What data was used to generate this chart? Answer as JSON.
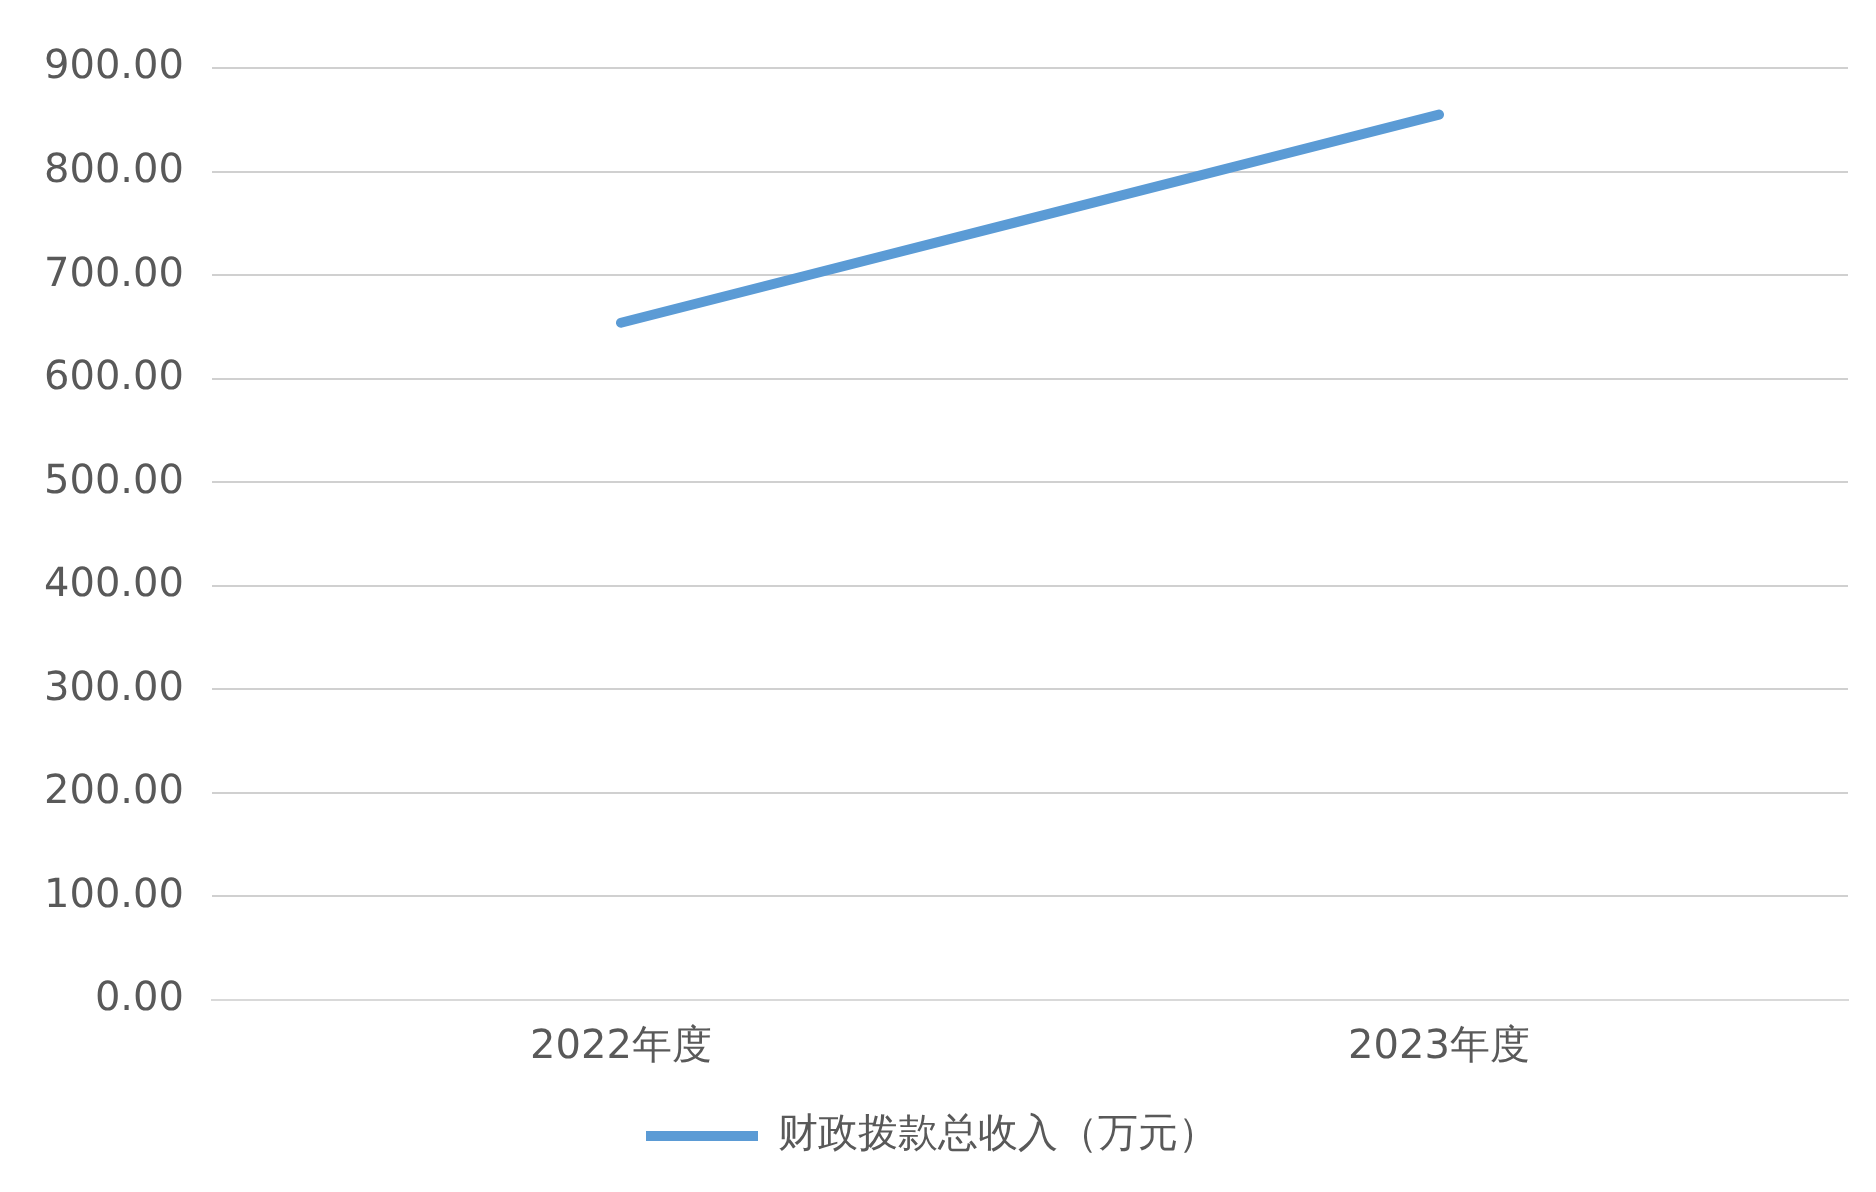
{
  "chart_data": {
    "type": "line",
    "categories": [
      "2022年度",
      "2023年度"
    ],
    "series": [
      {
        "name": "财政拨款总收入（万元）",
        "color": "#5b9bd5",
        "values": [
          654,
          855
        ]
      }
    ],
    "ylim": [
      0,
      900
    ],
    "yticks": [
      {
        "value": 0,
        "label": "0.00"
      },
      {
        "value": 100,
        "label": "100.00"
      },
      {
        "value": 200,
        "label": "200.00"
      },
      {
        "value": 300,
        "label": "300.00"
      },
      {
        "value": 400,
        "label": "400.00"
      },
      {
        "value": 500,
        "label": "500.00"
      },
      {
        "value": 600,
        "label": "600.00"
      },
      {
        "value": 700,
        "label": "700.00"
      },
      {
        "value": 800,
        "label": "800.00"
      },
      {
        "value": 900,
        "label": "900.00"
      }
    ],
    "grid": "y",
    "legend": "bottom",
    "marker": "none",
    "line_style": "solid"
  }
}
